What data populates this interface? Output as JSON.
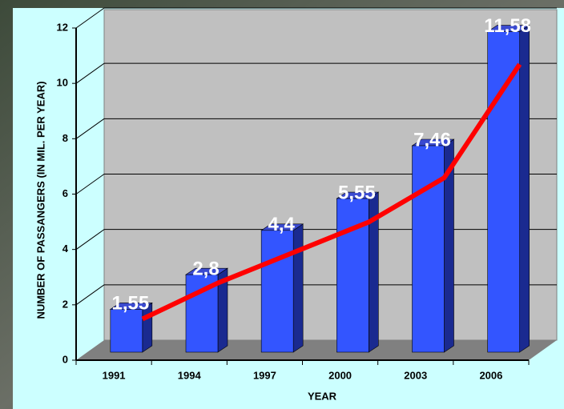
{
  "chart_data": {
    "type": "bar",
    "x_label": "YEAR",
    "y_label": "NUMBER OF PASSANGERS (IN MIL. PER YEAR)",
    "categories": [
      "1991",
      "1994",
      "1997",
      "2000",
      "2003",
      "2006"
    ],
    "values": [
      1.55,
      2.8,
      4.4,
      5.55,
      7.46,
      11.58
    ],
    "value_labels": [
      "1,55",
      "2,8",
      "4,4",
      "5,55",
      "7,46",
      "11,58"
    ],
    "color": "#3355ff",
    "ylim": [
      0,
      12
    ],
    "yticks": [
      0,
      2,
      4,
      6,
      8,
      10,
      12
    ],
    "grid": true,
    "trend": {
      "type": "line",
      "color": "#ff0000",
      "values": [
        1.2,
        2.5,
        3.6,
        4.7,
        6.3,
        10.4
      ]
    }
  }
}
